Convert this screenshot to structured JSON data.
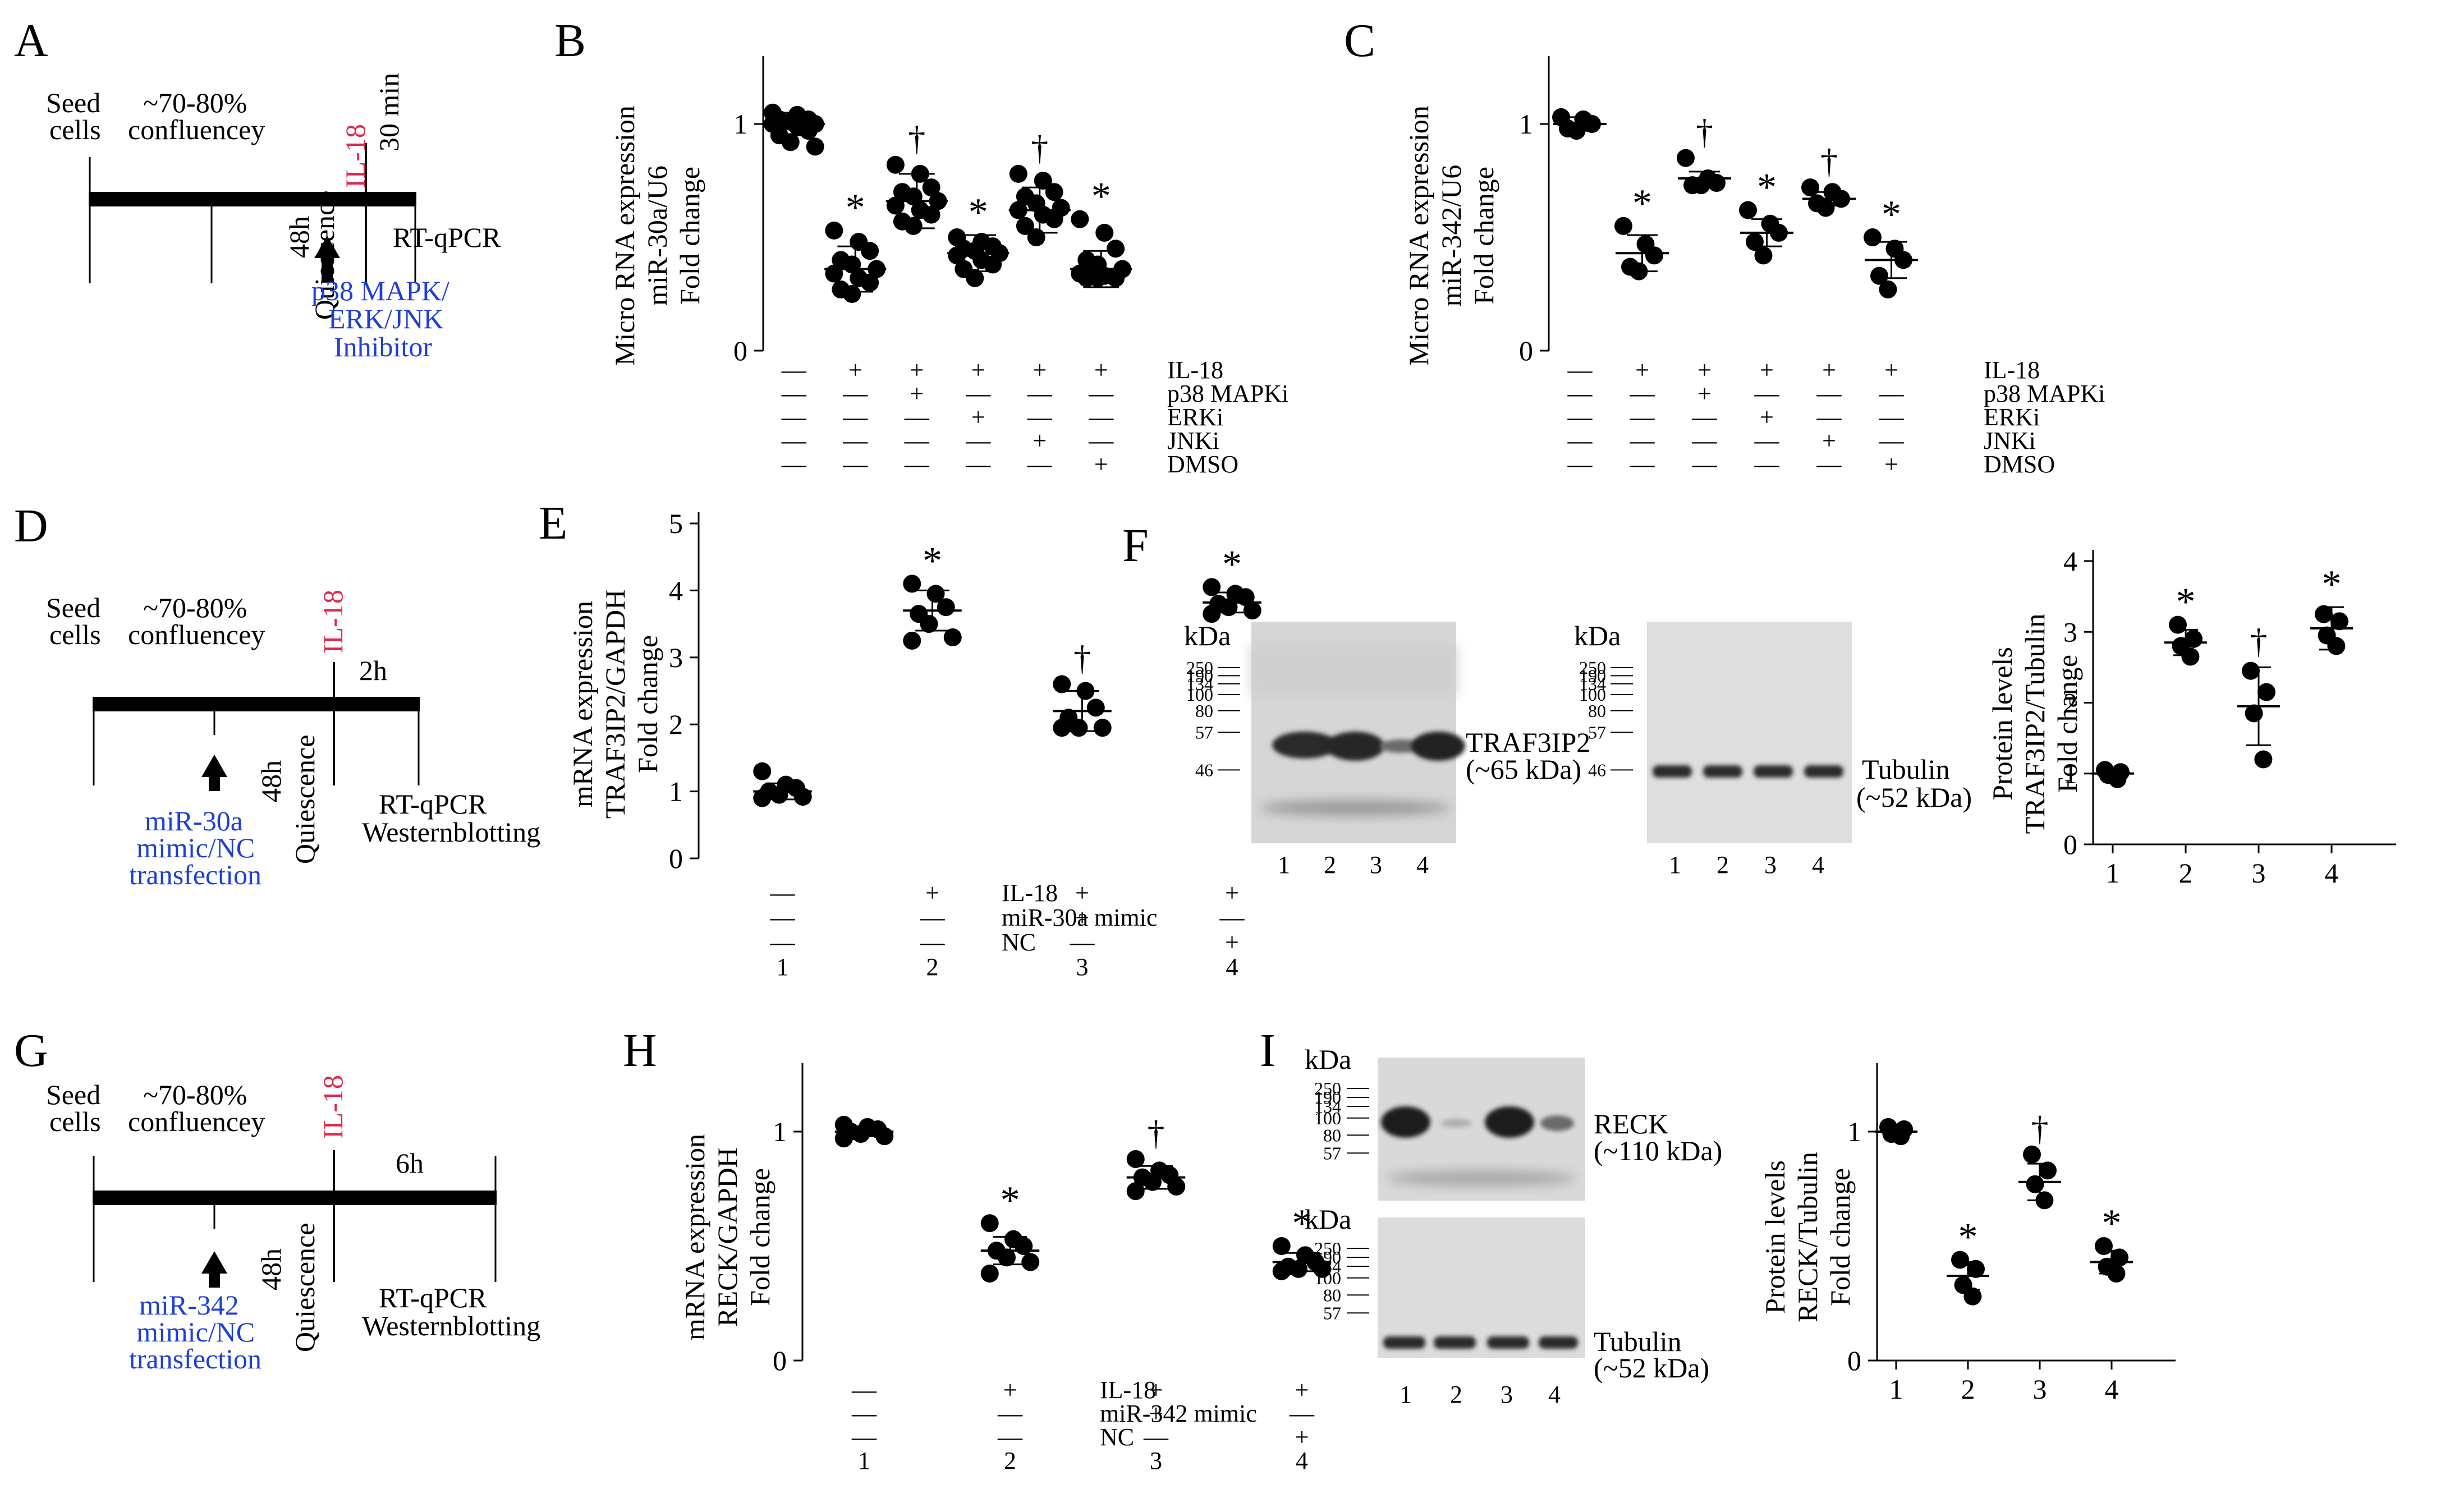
{
  "colors": {
    "ink": "#000000",
    "inhibitor": "#1d3fd6",
    "il18": "#e0284d",
    "band": "#2a2a2a",
    "blot_bg": "#d9d9d9"
  },
  "panels": {
    "A": {
      "label": "A",
      "seed": "Seed",
      "cells": "cells",
      "conf1": "~70-80%",
      "conf2": "confluencey",
      "il18": "IL-18",
      "time": "30 min",
      "quies1": "48h",
      "quies2": "Quiescence",
      "assay": "RT-qPCR",
      "inh1": "p38 MAPK/",
      "inh2": "ERK/JNK",
      "inh3": "Inhibitor"
    },
    "D": {
      "label": "D",
      "seed": "Seed",
      "cells": "cells",
      "conf1": "~70-80%",
      "conf2": "confluencey",
      "il18": "IL-18",
      "time": "2h",
      "quies1": "48h",
      "quies2": "Quiescence",
      "assay1": "RT-qPCR",
      "assay2": "Westernblotting",
      "tr1": "miR-30a",
      "tr2": "mimic/NC",
      "tr3": "transfection"
    },
    "G": {
      "label": "G",
      "seed": "Seed",
      "cells": "cells",
      "conf1": "~70-80%",
      "conf2": "confluencey",
      "il18": "IL-18",
      "time": "6h",
      "quies1": "48h",
      "quies2": "Quiescence",
      "assay1": "RT-qPCR",
      "assay2": "Westernblotting",
      "tr1": "miR-342",
      "tr2": "mimic/NC",
      "tr3": "transfection"
    },
    "F": {
      "label": "F",
      "blot1": {
        "kda": "kDa",
        "markers": [
          "250",
          "190",
          "134",
          "100",
          "80",
          "57",
          "46"
        ],
        "protein": "TRAF3IP2",
        "size": "(~65 kDa)",
        "lanes": [
          "1",
          "2",
          "3",
          "4"
        ]
      },
      "blot2": {
        "kda": "kDa",
        "markers": [
          "250",
          "190",
          "134",
          "100",
          "80",
          "57",
          "46"
        ],
        "protein": "Tubulin",
        "size": "(~52 kDa)",
        "lanes": [
          "1",
          "2",
          "3",
          "4"
        ]
      }
    },
    "I": {
      "label": "I",
      "blot1": {
        "kda": "kDa",
        "markers": [
          "250",
          "190",
          "134",
          "100",
          "80",
          "57"
        ],
        "protein": "RECK",
        "size": "(~110 kDa)"
      },
      "blot2": {
        "kda": "kDa",
        "markers": [
          "250",
          "190",
          "134",
          "100",
          "80",
          "57"
        ],
        "protein": "Tubulin",
        "size": "(~52 kDa)",
        "lanes": [
          "1",
          "2",
          "3",
          "4"
        ]
      }
    }
  },
  "chart_data": [
    {
      "id": "B",
      "type": "scatter",
      "label": "B",
      "ylabel": [
        "Micro RNA expression",
        "miR-30a/U6",
        "Fold change"
      ],
      "ylim": [
        0,
        1.25
      ],
      "yticks": [
        0,
        1
      ],
      "groups": [
        {
          "mean": 1.0,
          "sd": 0.05,
          "mark": "",
          "points": [
            1.05,
            1.04,
            1.02,
            1.02,
            1.01,
            1.0,
            1.0,
            0.99,
            0.97,
            0.95,
            0.92,
            0.9
          ]
        },
        {
          "mean": 0.36,
          "sd": 0.1,
          "mark": "*",
          "points": [
            0.53,
            0.48,
            0.44,
            0.4,
            0.38,
            0.36,
            0.34,
            0.32,
            0.3,
            0.27,
            0.25
          ]
        },
        {
          "mean": 0.66,
          "sd": 0.12,
          "mark": "†",
          "points": [
            0.82,
            0.78,
            0.72,
            0.7,
            0.68,
            0.66,
            0.64,
            0.62,
            0.6,
            0.57,
            0.55
          ]
        },
        {
          "mean": 0.43,
          "sd": 0.08,
          "mark": "*",
          "points": [
            0.5,
            0.48,
            0.46,
            0.45,
            0.44,
            0.43,
            0.42,
            0.4,
            0.38,
            0.36,
            0.32
          ]
        },
        {
          "mean": 0.62,
          "sd": 0.1,
          "mark": "†",
          "points": [
            0.78,
            0.75,
            0.7,
            0.68,
            0.65,
            0.63,
            0.62,
            0.6,
            0.58,
            0.55,
            0.5
          ]
        },
        {
          "mean": 0.36,
          "sd": 0.08,
          "mark": "*",
          "points": [
            0.58,
            0.52,
            0.45,
            0.4,
            0.38,
            0.36,
            0.34,
            0.33,
            0.32,
            0.32,
            0.32
          ]
        }
      ],
      "conditions": [
        {
          "name": "IL-18",
          "signs": [
            "—",
            "+",
            "+",
            "+",
            "+",
            "+"
          ]
        },
        {
          "name": "p38 MAPKi",
          "signs": [
            "—",
            "—",
            "+",
            "—",
            "—",
            "—"
          ]
        },
        {
          "name": "ERKi",
          "signs": [
            "—",
            "—",
            "—",
            "+",
            "—",
            "—"
          ]
        },
        {
          "name": "JNKi",
          "signs": [
            "—",
            "—",
            "—",
            "—",
            "+",
            "—"
          ]
        },
        {
          "name": "DMSO",
          "signs": [
            "—",
            "—",
            "—",
            "—",
            "—",
            "+"
          ]
        }
      ]
    },
    {
      "id": "C",
      "type": "scatter",
      "label": "C",
      "ylabel": [
        "Micro RNA expression",
        "miR-342/U6",
        "Fold change"
      ],
      "ylim": [
        0,
        1.25
      ],
      "yticks": [
        0,
        1
      ],
      "groups": [
        {
          "mean": 1.0,
          "sd": 0.03,
          "mark": "",
          "points": [
            1.03,
            1.02,
            1.0,
            0.98,
            0.97
          ]
        },
        {
          "mean": 0.43,
          "sd": 0.08,
          "mark": "*",
          "points": [
            0.55,
            0.47,
            0.42,
            0.37,
            0.35
          ]
        },
        {
          "mean": 0.76,
          "sd": 0.03,
          "mark": "†",
          "points": [
            0.85,
            0.76,
            0.74,
            0.73,
            0.73
          ]
        },
        {
          "mean": 0.52,
          "sd": 0.06,
          "mark": "*",
          "points": [
            0.62,
            0.56,
            0.52,
            0.48,
            0.42
          ]
        },
        {
          "mean": 0.67,
          "sd": 0.03,
          "mark": "†",
          "points": [
            0.72,
            0.7,
            0.67,
            0.65,
            0.63
          ]
        },
        {
          "mean": 0.4,
          "sd": 0.08,
          "mark": "*",
          "points": [
            0.5,
            0.45,
            0.4,
            0.33,
            0.27
          ]
        }
      ],
      "conditions": [
        {
          "name": "IL-18",
          "signs": [
            "—",
            "+",
            "+",
            "+",
            "+",
            "+"
          ]
        },
        {
          "name": "p38 MAPKi",
          "signs": [
            "—",
            "—",
            "+",
            "—",
            "—",
            "—"
          ]
        },
        {
          "name": "ERKi",
          "signs": [
            "—",
            "—",
            "—",
            "+",
            "—",
            "—"
          ]
        },
        {
          "name": "JNKi",
          "signs": [
            "—",
            "—",
            "—",
            "—",
            "+",
            "—"
          ]
        },
        {
          "name": "DMSO",
          "signs": [
            "—",
            "—",
            "—",
            "—",
            "—",
            "+"
          ]
        }
      ]
    },
    {
      "id": "E",
      "type": "scatter",
      "label": "E",
      "ylabel": [
        "mRNA expression",
        "TRAF3IP2/GAPDH",
        "Fold change"
      ],
      "ylim": [
        0,
        5
      ],
      "yticks": [
        0,
        1,
        2,
        3,
        4,
        5
      ],
      "groups": [
        {
          "mean": 1.0,
          "sd": 0.12,
          "mark": "",
          "points": [
            1.3,
            1.1,
            1.05,
            1.0,
            0.95,
            0.92,
            0.9
          ]
        },
        {
          "mean": 3.7,
          "sd": 0.3,
          "mark": "*",
          "points": [
            4.1,
            3.95,
            3.75,
            3.65,
            3.5,
            3.3,
            3.25
          ]
        },
        {
          "mean": 2.2,
          "sd": 0.3,
          "mark": "†",
          "points": [
            2.6,
            2.5,
            2.25,
            2.1,
            1.95,
            1.95,
            1.95
          ]
        },
        {
          "mean": 3.82,
          "sd": 0.15,
          "mark": "*",
          "points": [
            4.05,
            3.95,
            3.9,
            3.8,
            3.75,
            3.7,
            3.65
          ]
        }
      ],
      "conditions": [
        {
          "name": "IL-18",
          "signs": [
            "—",
            "+",
            "+",
            "+"
          ]
        },
        {
          "name": "miR-30a mimic",
          "signs": [
            "—",
            "—",
            "+",
            "—"
          ]
        },
        {
          "name": "NC",
          "signs": [
            "—",
            "—",
            "—",
            "+"
          ]
        }
      ],
      "lane_labels": [
        "1",
        "2",
        "3",
        "4"
      ]
    },
    {
      "id": "F-quant",
      "type": "scatter",
      "ylabel": [
        "Protein levels",
        "TRAF3IP2/Tubulin",
        "Fold change"
      ],
      "ylim": [
        0,
        4
      ],
      "yticks": [
        0,
        1,
        2,
        3,
        4
      ],
      "groups": [
        {
          "mean": 1.0,
          "sd": 0.07,
          "mark": "",
          "points": [
            1.05,
            1.02,
            0.98,
            0.92
          ]
        },
        {
          "mean": 2.85,
          "sd": 0.18,
          "mark": "*",
          "points": [
            3.1,
            2.9,
            2.8,
            2.65
          ]
        },
        {
          "mean": 1.95,
          "sd": 0.55,
          "mark": "†",
          "points": [
            2.45,
            2.15,
            1.85,
            1.2
          ]
        },
        {
          "mean": 3.05,
          "sd": 0.3,
          "mark": "*",
          "points": [
            3.25,
            3.15,
            2.95,
            2.8
          ]
        }
      ],
      "categories": [
        "1",
        "2",
        "3",
        "4"
      ]
    },
    {
      "id": "H",
      "type": "scatter",
      "label": "H",
      "ylabel": [
        "mRNA expression",
        "RECK/GAPDH",
        "Fold change"
      ],
      "ylim": [
        0,
        1.25
      ],
      "yticks": [
        0,
        1
      ],
      "groups": [
        {
          "mean": 1.0,
          "sd": 0.02,
          "mark": "",
          "points": [
            1.03,
            1.02,
            1.01,
            1.0,
            0.99,
            0.98,
            0.97
          ]
        },
        {
          "mean": 0.48,
          "sd": 0.06,
          "mark": "*",
          "points": [
            0.6,
            0.53,
            0.5,
            0.48,
            0.45,
            0.43,
            0.38
          ]
        },
        {
          "mean": 0.8,
          "sd": 0.05,
          "mark": "†",
          "points": [
            0.88,
            0.83,
            0.81,
            0.8,
            0.78,
            0.76,
            0.74
          ]
        },
        {
          "mean": 0.43,
          "sd": 0.04,
          "mark": "*",
          "points": [
            0.5,
            0.46,
            0.43,
            0.41,
            0.4,
            0.4,
            0.39
          ]
        }
      ],
      "conditions": [
        {
          "name": "IL-18",
          "signs": [
            "—",
            "+",
            "+",
            "+"
          ]
        },
        {
          "name": "miR-342 mimic",
          "signs": [
            "—",
            "—",
            "+",
            "—"
          ]
        },
        {
          "name": "NC",
          "signs": [
            "—",
            "—",
            "—",
            "+"
          ]
        }
      ],
      "lane_labels": [
        "1",
        "2",
        "3",
        "4"
      ]
    },
    {
      "id": "I-quant",
      "type": "scatter",
      "ylabel": [
        "Protein levels",
        "RECK/Tubulin",
        "Fold change"
      ],
      "ylim": [
        0,
        1.25
      ],
      "yticks": [
        0,
        1
      ],
      "groups": [
        {
          "mean": 1.0,
          "sd": 0.02,
          "mark": "",
          "points": [
            1.02,
            1.01,
            0.99,
            0.98
          ]
        },
        {
          "mean": 0.37,
          "sd": 0.06,
          "mark": "*",
          "points": [
            0.44,
            0.4,
            0.33,
            0.28
          ]
        },
        {
          "mean": 0.78,
          "sd": 0.08,
          "mark": "†",
          "points": [
            0.9,
            0.83,
            0.77,
            0.7
          ]
        },
        {
          "mean": 0.43,
          "sd": 0.05,
          "mark": "*",
          "points": [
            0.5,
            0.45,
            0.41,
            0.38
          ]
        }
      ],
      "categories": [
        "1",
        "2",
        "3",
        "4"
      ]
    }
  ]
}
